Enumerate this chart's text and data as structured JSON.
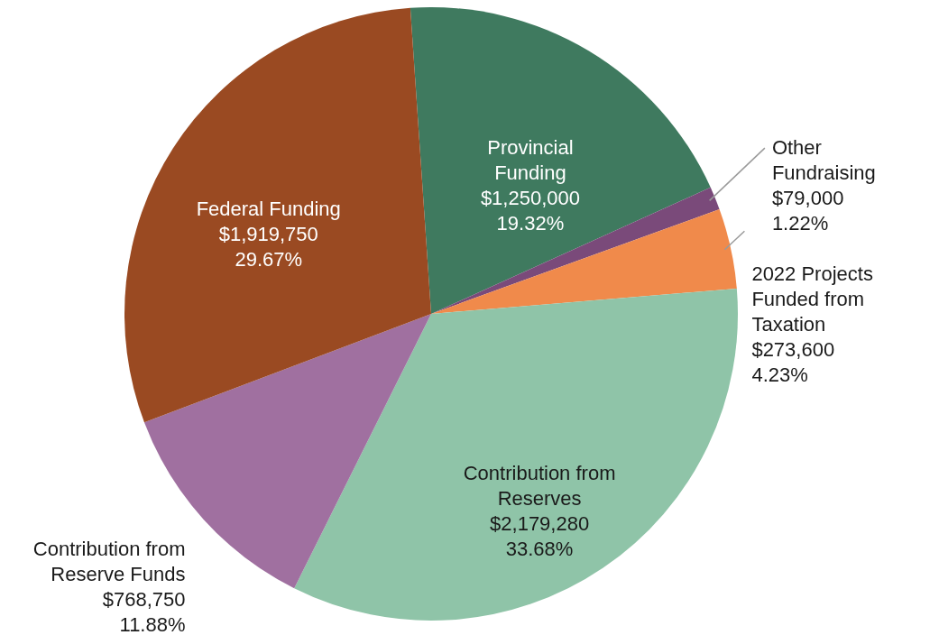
{
  "chart_data": {
    "type": "pie",
    "categories": [
      "Provincial Funding",
      "Other Fundraising",
      "2022 Projects Funded from Taxation",
      "Contribution from Reserves",
      "Contribution from Reserve Funds",
      "Federal Funding"
    ],
    "values": [
      1250000,
      79000,
      273600,
      2179280,
      768750,
      1919750
    ],
    "value_labels": [
      "$1,250,000\n19.32%",
      "$79,000\n1.22%",
      "$273,600\n4.23%",
      "$2,179,280\n33.68%",
      "$768,750\n11.88%",
      "$1,919,750\n29.67%"
    ],
    "colors": [
      "#3f7a5f",
      "#7a4a7a",
      "#f08a4b",
      "#8fc4a8",
      "#a070a0",
      "#9a4a22"
    ]
  }
}
